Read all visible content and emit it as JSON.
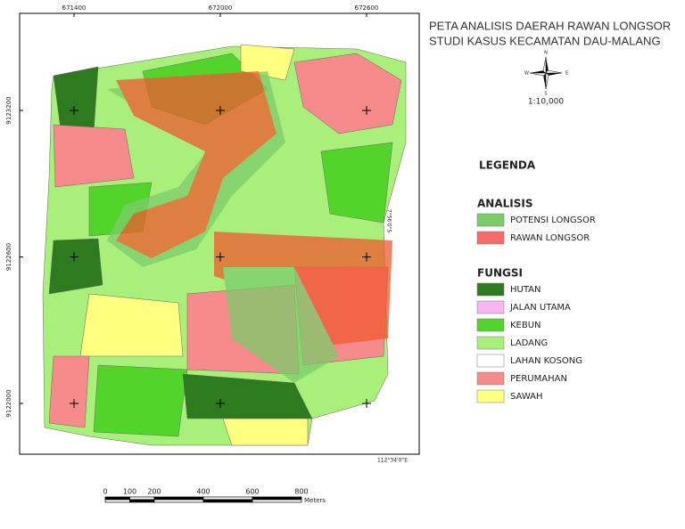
{
  "title": [
    "PETA ANALISIS DAERAH RAWAN LONGSOR",
    "STUDI KASUS KECAMATAN DAU-MALANG"
  ],
  "compass": {
    "n": "N",
    "s": "S",
    "e": "E",
    "w": "W"
  },
  "scale_ratio": "1:10,000",
  "legend": {
    "title": "LEGENDA",
    "groups": [
      {
        "title": "ANALISIS",
        "items": [
          {
            "label": "POTENSI LONGSOR",
            "color": "#7dcc6a"
          },
          {
            "label": "RAWAN LONGSOR",
            "color": "#f56a6a"
          }
        ]
      },
      {
        "title": "FUNGSI",
        "items": [
          {
            "label": "HUTAN",
            "color": "#2d7a1f"
          },
          {
            "label": "JALAN UTAMA",
            "color": "#f7b6f0"
          },
          {
            "label": "KEBUN",
            "color": "#52d42a"
          },
          {
            "label": "LADANG",
            "color": "#a8f07a"
          },
          {
            "label": "LAHAN KOSONG",
            "color": "#ffffff"
          },
          {
            "label": "PERUMAHAN",
            "color": "#f78b8b"
          },
          {
            "label": "SAWAH",
            "color": "#ffff80"
          }
        ]
      }
    ]
  },
  "map_frame": {
    "x_ticks": [
      671400,
      672000,
      672600
    ],
    "y_ticks": [
      9123200,
      9122600,
      9122000
    ],
    "side_label": "7°56'0\"S",
    "bottom_label": "112°34'0\"E"
  },
  "scale_bar": {
    "ticks": [
      0,
      100,
      200,
      400,
      600,
      800
    ],
    "unit": "Meters"
  }
}
